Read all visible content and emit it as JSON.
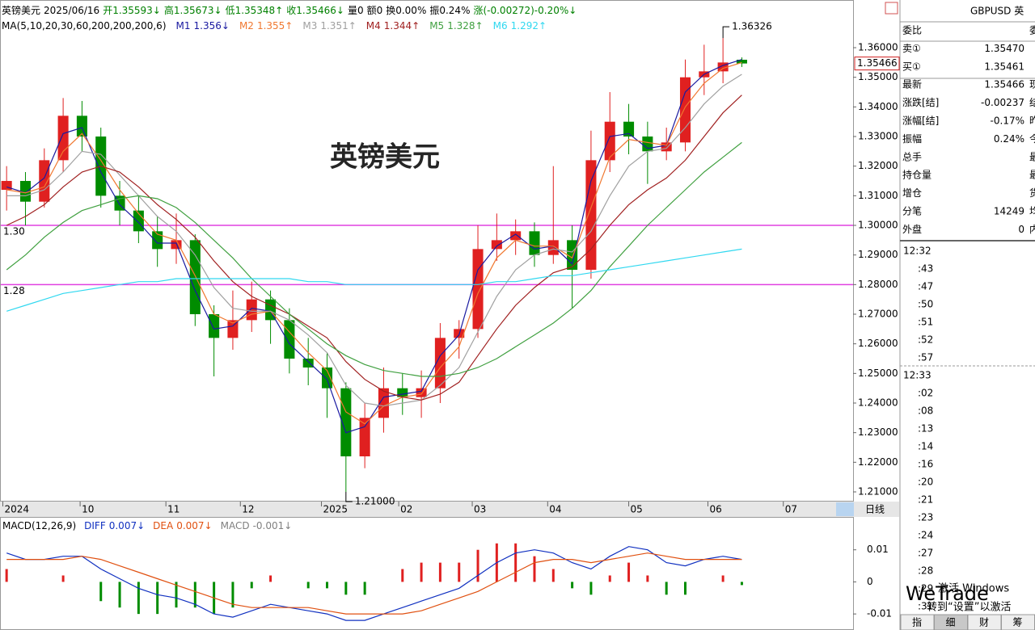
{
  "chart_data": {
    "type": "candlestick",
    "header": [
      {
        "text": "英镑美元",
        "color": "#000000"
      },
      {
        "text": "2025/06/16",
        "color": "#000000"
      },
      {
        "text": "开1.35593↓",
        "color": "#008000"
      },
      {
        "text": "高1.35673↓",
        "color": "#008000"
      },
      {
        "text": "低1.35348↑",
        "color": "#008000"
      },
      {
        "text": "收1.35466↓",
        "color": "#008000"
      },
      {
        "text": "量0",
        "color": "#000000"
      },
      {
        "text": "额0",
        "color": "#000000"
      },
      {
        "text": "换0.00%",
        "color": "#000000"
      },
      {
        "text": "振0.24%",
        "color": "#000000"
      },
      {
        "text": "涨(-0.00272)-0.20%↓",
        "color": "#008000"
      }
    ],
    "title": "英镑美元",
    "title_color": "#e8404a",
    "ma_title": "MA(5,10,20,30,60,200,200,200,6)",
    "up_color": "#e02020",
    "down_color": "#008c00",
    "candles": [
      {
        "open": 1.312,
        "high": 1.32,
        "low": 1.305,
        "close": 1.315
      },
      {
        "open": 1.315,
        "high": 1.318,
        "low": 1.3,
        "close": 1.308
      },
      {
        "open": 1.308,
        "high": 1.326,
        "low": 1.306,
        "close": 1.322
      },
      {
        "open": 1.322,
        "high": 1.343,
        "low": 1.318,
        "close": 1.337
      },
      {
        "open": 1.337,
        "high": 1.342,
        "low": 1.325,
        "close": 1.33
      },
      {
        "open": 1.33,
        "high": 1.333,
        "low": 1.306,
        "close": 1.31
      },
      {
        "open": 1.31,
        "high": 1.315,
        "low": 1.3,
        "close": 1.305
      },
      {
        "open": 1.305,
        "high": 1.31,
        "low": 1.294,
        "close": 1.298
      },
      {
        "open": 1.298,
        "high": 1.303,
        "low": 1.286,
        "close": 1.292
      },
      {
        "open": 1.292,
        "high": 1.304,
        "low": 1.287,
        "close": 1.295
      },
      {
        "open": 1.295,
        "high": 1.297,
        "low": 1.266,
        "close": 1.27
      },
      {
        "open": 1.27,
        "high": 1.273,
        "low": 1.249,
        "close": 1.262
      },
      {
        "open": 1.262,
        "high": 1.278,
        "low": 1.258,
        "close": 1.268
      },
      {
        "open": 1.268,
        "high": 1.281,
        "low": 1.264,
        "close": 1.275
      },
      {
        "open": 1.275,
        "high": 1.278,
        "low": 1.26,
        "close": 1.268
      },
      {
        "open": 1.268,
        "high": 1.272,
        "low": 1.25,
        "close": 1.255
      },
      {
        "open": 1.255,
        "high": 1.262,
        "low": 1.246,
        "close": 1.252
      },
      {
        "open": 1.252,
        "high": 1.257,
        "low": 1.235,
        "close": 1.245
      },
      {
        "open": 1.245,
        "high": 1.247,
        "low": 1.21,
        "close": 1.222
      },
      {
        "open": 1.222,
        "high": 1.24,
        "low": 1.218,
        "close": 1.235
      },
      {
        "open": 1.235,
        "high": 1.252,
        "low": 1.23,
        "close": 1.245
      },
      {
        "open": 1.245,
        "high": 1.25,
        "low": 1.236,
        "close": 1.242
      },
      {
        "open": 1.242,
        "high": 1.251,
        "low": 1.235,
        "close": 1.245
      },
      {
        "open": 1.245,
        "high": 1.267,
        "low": 1.24,
        "close": 1.262
      },
      {
        "open": 1.262,
        "high": 1.268,
        "low": 1.255,
        "close": 1.265
      },
      {
        "open": 1.265,
        "high": 1.3,
        "low": 1.262,
        "close": 1.292
      },
      {
        "open": 1.292,
        "high": 1.304,
        "low": 1.288,
        "close": 1.295
      },
      {
        "open": 1.295,
        "high": 1.302,
        "low": 1.29,
        "close": 1.298
      },
      {
        "open": 1.298,
        "high": 1.301,
        "low": 1.286,
        "close": 1.29
      },
      {
        "open": 1.29,
        "high": 1.32,
        "low": 1.287,
        "close": 1.295
      },
      {
        "open": 1.295,
        "high": 1.3,
        "low": 1.272,
        "close": 1.285
      },
      {
        "open": 1.285,
        "high": 1.332,
        "low": 1.282,
        "close": 1.322
      },
      {
        "open": 1.322,
        "high": 1.345,
        "low": 1.318,
        "close": 1.335
      },
      {
        "open": 1.335,
        "high": 1.341,
        "low": 1.324,
        "close": 1.33
      },
      {
        "open": 1.33,
        "high": 1.335,
        "low": 1.314,
        "close": 1.325
      },
      {
        "open": 1.325,
        "high": 1.333,
        "low": 1.322,
        "close": 1.328
      },
      {
        "open": 1.328,
        "high": 1.356,
        "low": 1.325,
        "close": 1.35
      },
      {
        "open": 1.35,
        "high": 1.361,
        "low": 1.344,
        "close": 1.352
      },
      {
        "open": 1.352,
        "high": 1.36326,
        "low": 1.348,
        "close": 1.355
      },
      {
        "open": 1.35593,
        "high": 1.35673,
        "low": 1.35348,
        "close": 1.35466
      }
    ],
    "series": [
      {
        "name": "M1",
        "label": "1.356↓",
        "color": "#1a1aa0",
        "values": [
          1.313,
          1.311,
          1.316,
          1.331,
          1.333,
          1.318,
          1.307,
          1.301,
          1.294,
          1.294,
          1.278,
          1.265,
          1.266,
          1.272,
          1.271,
          1.26,
          1.254,
          1.248,
          1.23,
          1.232,
          1.242,
          1.243,
          1.244,
          1.256,
          1.263,
          1.285,
          1.293,
          1.297,
          1.292,
          1.293,
          1.287,
          1.315,
          1.33,
          1.331,
          1.326,
          1.327,
          1.345,
          1.351,
          1.354,
          1.356
        ]
      },
      {
        "name": "M2",
        "label": "1.355↑",
        "color": "#f07830",
        "values": [
          1.312,
          1.311,
          1.313,
          1.325,
          1.331,
          1.322,
          1.312,
          1.304,
          1.297,
          1.295,
          1.283,
          1.27,
          1.267,
          1.27,
          1.271,
          1.264,
          1.257,
          1.251,
          1.237,
          1.233,
          1.239,
          1.242,
          1.243,
          1.252,
          1.259,
          1.277,
          1.289,
          1.295,
          1.293,
          1.293,
          1.289,
          1.306,
          1.323,
          1.329,
          1.328,
          1.327,
          1.34,
          1.348,
          1.353,
          1.355
        ]
      },
      {
        "name": "M3",
        "label": "1.351↑",
        "color": "#a0a0a0",
        "values": [
          1.31,
          1.31,
          1.312,
          1.318,
          1.325,
          1.324,
          1.317,
          1.31,
          1.303,
          1.298,
          1.29,
          1.279,
          1.272,
          1.271,
          1.271,
          1.268,
          1.263,
          1.257,
          1.246,
          1.24,
          1.239,
          1.24,
          1.241,
          1.246,
          1.252,
          1.264,
          1.276,
          1.285,
          1.29,
          1.292,
          1.291,
          1.298,
          1.31,
          1.32,
          1.325,
          1.326,
          1.333,
          1.341,
          1.347,
          1.351
        ]
      },
      {
        "name": "M4",
        "label": "1.344↑",
        "color": "#a02020",
        "values": [
          1.3,
          1.303,
          1.307,
          1.313,
          1.318,
          1.32,
          1.318,
          1.313,
          1.307,
          1.302,
          1.296,
          1.288,
          1.281,
          1.276,
          1.273,
          1.27,
          1.266,
          1.262,
          1.254,
          1.248,
          1.244,
          1.242,
          1.241,
          1.243,
          1.247,
          1.256,
          1.265,
          1.273,
          1.279,
          1.284,
          1.286,
          1.292,
          1.3,
          1.307,
          1.312,
          1.316,
          1.322,
          1.33,
          1.338,
          1.344
        ]
      },
      {
        "name": "M5",
        "label": "1.328↑",
        "color": "#40a040",
        "values": [
          1.285,
          1.29,
          1.296,
          1.301,
          1.305,
          1.307,
          1.309,
          1.31,
          1.309,
          1.306,
          1.301,
          1.295,
          1.289,
          1.282,
          1.276,
          1.27,
          1.265,
          1.26,
          1.256,
          1.253,
          1.251,
          1.25,
          1.249,
          1.249,
          1.25,
          1.252,
          1.255,
          1.259,
          1.263,
          1.267,
          1.272,
          1.278,
          1.286,
          1.293,
          1.3,
          1.306,
          1.312,
          1.318,
          1.323,
          1.328
        ]
      },
      {
        "name": "M6",
        "label": "1.292↑",
        "color": "#30d8f0",
        "values": [
          1.271,
          1.273,
          1.275,
          1.277,
          1.278,
          1.279,
          1.28,
          1.281,
          1.281,
          1.282,
          1.282,
          1.282,
          1.282,
          1.282,
          1.282,
          1.282,
          1.281,
          1.281,
          1.28,
          1.28,
          1.28,
          1.28,
          1.28,
          1.28,
          1.28,
          1.28,
          1.281,
          1.281,
          1.282,
          1.283,
          1.283,
          1.284,
          1.285,
          1.286,
          1.287,
          1.288,
          1.289,
          1.29,
          1.291,
          1.292
        ]
      }
    ],
    "xlim": [
      -0.35,
      44.9
    ],
    "xticks": [
      {
        "value": -0.2,
        "label": "2024"
      },
      {
        "value": 3.9,
        "label": "10"
      },
      {
        "value": 8.45,
        "label": "11"
      },
      {
        "value": 12.4,
        "label": "12"
      },
      {
        "value": 16.7,
        "label": "2025"
      },
      {
        "value": 20.8,
        "label": "02"
      },
      {
        "value": 24.7,
        "label": "03"
      },
      {
        "value": 28.7,
        "label": "04"
      },
      {
        "value": 33,
        "label": "05"
      },
      {
        "value": 37.2,
        "label": "06"
      },
      {
        "value": 41.2,
        "label": "07"
      }
    ],
    "period": "日线",
    "ylim": [
      1.207,
      1.3761
    ],
    "yticks": [
      {
        "value": 1.21,
        "label": "1.21000"
      },
      {
        "value": 1.22,
        "label": "1.22000"
      },
      {
        "value": 1.23,
        "label": "1.23000"
      },
      {
        "value": 1.24,
        "label": "1.24000"
      },
      {
        "value": 1.25,
        "label": "1.25000"
      },
      {
        "value": 1.26,
        "label": "1.26000"
      },
      {
        "value": 1.27,
        "label": "1.27000"
      },
      {
        "value": 1.28,
        "label": "1.28000"
      },
      {
        "value": 1.29,
        "label": "1.29000"
      },
      {
        "value": 1.3,
        "label": "1.30000"
      },
      {
        "value": 1.31,
        "label": "1.31000"
      },
      {
        "value": 1.32,
        "label": "1.32000"
      },
      {
        "value": 1.33,
        "label": "1.33000"
      },
      {
        "value": 1.34,
        "label": "1.34000"
      },
      {
        "value": 1.35,
        "label": "1.35000"
      },
      {
        "value": 1.36,
        "label": "1.36000"
      }
    ],
    "levels": [
      {
        "value": 1.3,
        "label": "1.30"
      },
      {
        "value": 1.28,
        "label": "1.28"
      }
    ],
    "level_color": "#e040e0",
    "annotations": [
      {
        "value": 1.36326,
        "label": "1.36326"
      },
      {
        "value": 1.21,
        "label": "1.21000"
      }
    ],
    "last_price": 1.35466,
    "macd": {
      "title": "MACD(12,26,9)",
      "series": [
        {
          "name": "DIFF",
          "label": "0.007↓",
          "color": "#1030c0",
          "values": [
            0.009,
            0.007,
            0.007,
            0.008,
            0.008,
            0.004,
            0.001,
            -0.002,
            -0.004,
            -0.005,
            -0.007,
            -0.01,
            -0.011,
            -0.009,
            -0.007,
            -0.008,
            -0.009,
            -0.01,
            -0.012,
            -0.012,
            -0.01,
            -0.008,
            -0.006,
            -0.004,
            -0.002,
            0.002,
            0.006,
            0.009,
            0.01,
            0.009,
            0.006,
            0.004,
            0.008,
            0.011,
            0.01,
            0.006,
            0.005,
            0.007,
            0.008,
            0.007
          ]
        },
        {
          "name": "DEA",
          "label": "0.007↓",
          "color": "#e05010",
          "values": [
            0.007,
            0.007,
            0.007,
            0.007,
            0.008,
            0.007,
            0.005,
            0.003,
            0.001,
            -0.001,
            -0.003,
            -0.005,
            -0.007,
            -0.008,
            -0.008,
            -0.008,
            -0.008,
            -0.009,
            -0.01,
            -0.01,
            -0.01,
            -0.01,
            -0.009,
            -0.007,
            -0.005,
            -0.003,
            0.0,
            0.003,
            0.006,
            0.007,
            0.007,
            0.006,
            0.007,
            0.008,
            0.009,
            0.008,
            0.007,
            0.007,
            0.007,
            0.007
          ]
        }
      ],
      "histogram": {
        "name": "MACD",
        "label": "-0.001↓",
        "color": "#808080",
        "values": [
          0.004,
          0,
          0,
          0.002,
          0,
          -0.006,
          -0.008,
          -0.01,
          -0.01,
          -0.008,
          -0.008,
          -0.01,
          -0.008,
          -0.002,
          0.002,
          0,
          -0.002,
          -0.002,
          -0.004,
          -0.004,
          0,
          0.004,
          0.006,
          0.006,
          0.006,
          0.01,
          0.012,
          0.012,
          0.008,
          0.004,
          -0.002,
          -0.004,
          0.002,
          0.006,
          0.002,
          -0.004,
          -0.004,
          0,
          0.002,
          -0.001
        ]
      },
      "ylim": [
        -0.0145,
        0.01975
      ],
      "yticks": [
        -0.01,
        0,
        0.01
      ]
    }
  },
  "order_book": {
    "title": "GBPUSD 英",
    "rows": [
      {
        "label": "委比",
        "right": "委"
      },
      {
        "label": "卖①",
        "value": "1.35470",
        "color": "#008000"
      },
      {
        "label": "买①",
        "value": "1.35461",
        "color": "#008000"
      },
      {
        "label": "最新",
        "value": "1.35466",
        "color": "#008000",
        "right": "现"
      },
      {
        "label": "涨跌[结]",
        "value": "-0.00237",
        "color": "#008000",
        "right": "结"
      },
      {
        "label": "涨幅[结]",
        "value": "-0.17%",
        "color": "#008000",
        "right": "昨"
      },
      {
        "label": "振幅",
        "value": "0.24%",
        "color": "#000000",
        "right": "今"
      },
      {
        "label": "总手",
        "right": "最"
      },
      {
        "label": "持仓量",
        "right": "最"
      },
      {
        "label": "增仓",
        "right": "货"
      },
      {
        "label": "分笔",
        "value": "14249",
        "color": "#000000",
        "right": "均"
      },
      {
        "label": "外盘",
        "value": "0",
        "color": "#e00000",
        "right": "内"
      }
    ],
    "times": [
      "12:32",
      ":43",
      ":47",
      ":50",
      ":51",
      ":52",
      ":57",
      "12:33",
      ":02",
      ":08",
      ":13",
      ":14",
      ":16",
      ":20",
      ":21",
      ":23",
      ":24",
      ":27",
      ":28",
      ":29",
      ":31"
    ],
    "tabs": [
      "指",
      "细",
      "财",
      "筹"
    ]
  },
  "overlay": {
    "logo": "WeTrade",
    "activation": [
      "激活 Windows",
      "转到“设置”以激活"
    ]
  }
}
